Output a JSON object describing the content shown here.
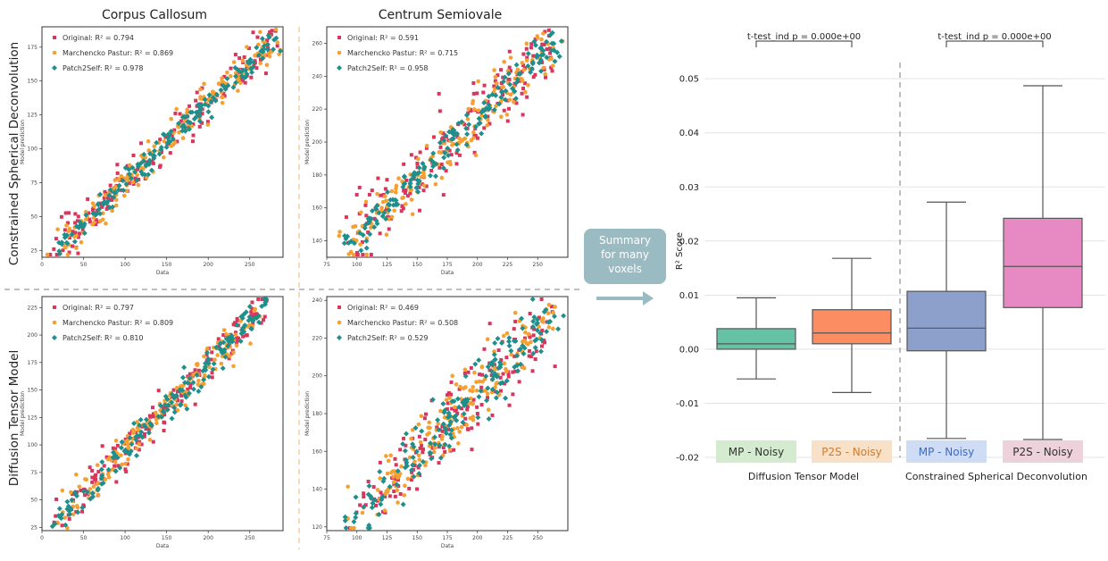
{
  "colors": {
    "original": "#d9365e",
    "mp": "#f5a033",
    "p2s": "#1f8f8c",
    "box_mp_dtm": "#66c2a5",
    "box_p2s_dtm": "#fc8d62",
    "box_mp_csd": "#8da0cb",
    "box_p2s_csd": "#e78ac3",
    "label_mp_dtm": "#d4ebd0",
    "label_p2s_dtm": "#f9e1c7",
    "label_mp_csd": "#cfdcf5",
    "label_p2s_csd": "#edd1db",
    "arrow": "#9bbbc2"
  },
  "column_titles": [
    "Corpus Callosum",
    "Centrum Semiovale"
  ],
  "row_titles": [
    "Constrained Spherical Deconvolution",
    "Diffusion Tensor Model"
  ],
  "arrow_label": [
    "Summary",
    "for many",
    "voxels"
  ],
  "chart_data": [
    {
      "id": "cc_csd",
      "type": "scatter",
      "column": "Corpus Callosum",
      "row": "Constrained Spherical Deconvolution",
      "xlabel": "Data",
      "ylabel": "Model prediction",
      "xlim": [
        0,
        290
      ],
      "ylim": [
        20,
        190
      ],
      "xticks": [
        0,
        50,
        100,
        150,
        200,
        250
      ],
      "yticks": [
        25,
        50,
        75,
        100,
        125,
        150,
        175
      ],
      "legend": [
        "Original: R² = 0.794",
        "Marchencko Pastur: R² = 0.869",
        "Patch2Self: R² = 0.978"
      ],
      "fit": {
        "x0": 15,
        "x1": 280,
        "y0": 24,
        "y1": 182
      },
      "spread": [
        22,
        16,
        9
      ],
      "seed": 11
    },
    {
      "id": "cs_csd",
      "type": "scatter",
      "column": "Centrum Semiovale",
      "row": "Constrained Spherical Deconvolution",
      "xlabel": "Data",
      "ylabel": "Model prediction",
      "xlim": [
        75,
        275
      ],
      "ylim": [
        130,
        270
      ],
      "xticks": [
        75,
        100,
        125,
        150,
        175,
        200,
        225,
        250
      ],
      "yticks": [
        140,
        160,
        180,
        200,
        220,
        240,
        260
      ],
      "legend": [
        "Original: R² = 0.591",
        "Marchencko Pastur: R² = 0.715",
        "Patch2Self: R² = 0.958"
      ],
      "fit": {
        "x0": 90,
        "x1": 265,
        "y0": 135,
        "y1": 262
      },
      "spread": [
        28,
        20,
        10
      ],
      "seed": 23
    },
    {
      "id": "cc_dtm",
      "type": "scatter",
      "column": "Corpus Callosum",
      "row": "Diffusion Tensor Model",
      "xlabel": "Data",
      "ylabel": "Model prediction",
      "xlim": [
        0,
        290
      ],
      "ylim": [
        22,
        235
      ],
      "xticks": [
        0,
        50,
        100,
        150,
        200,
        250
      ],
      "yticks": [
        25,
        50,
        75,
        100,
        125,
        150,
        175,
        200,
        225
      ],
      "legend": [
        "Original: R² = 0.797",
        "Marchencko Pastur: R² = 0.809",
        "Patch2Self: R² = 0.810"
      ],
      "fit": {
        "x0": 15,
        "x1": 270,
        "y0": 28,
        "y1": 228
      },
      "spread": [
        24,
        20,
        16
      ],
      "seed": 37
    },
    {
      "id": "cs_dtm",
      "type": "scatter",
      "column": "Centrum Semiovale",
      "row": "Diffusion Tensor Model",
      "xlabel": "Data",
      "ylabel": "Model prediction",
      "xlim": [
        75,
        275
      ],
      "ylim": [
        118,
        242
      ],
      "xticks": [
        75,
        100,
        125,
        150,
        175,
        200,
        225,
        250
      ],
      "yticks": [
        120,
        140,
        160,
        180,
        200,
        220,
        240
      ],
      "legend": [
        "Original: R² = 0.469",
        "Marchencko Pastur: R² = 0.508",
        "Patch2Self: R² = 0.529"
      ],
      "fit": {
        "x0": 95,
        "x1": 262,
        "y0": 122,
        "y1": 232
      },
      "spread": [
        26,
        22,
        18
      ],
      "seed": 51
    },
    {
      "id": "summary",
      "type": "box",
      "ylabel": "R² Score",
      "ylim": [
        -0.02,
        0.053
      ],
      "yticks": [
        -0.02,
        -0.01,
        0.0,
        0.01,
        0.02,
        0.03,
        0.04,
        0.05
      ],
      "ytick_labels": [
        "-0.02",
        "-0.01",
        "0.00",
        "0.01",
        "0.02",
        "0.03",
        "0.04",
        "0.05"
      ],
      "groups": [
        "Diffusion Tensor Model",
        "Constrained Spherical Deconvolution"
      ],
      "annotations": [
        "t-test_ind p = 0.000e+00",
        "t-test_ind p = 0.000e+00"
      ],
      "boxes": [
        {
          "label": "MP - Noisy",
          "group": "Diffusion Tensor Model",
          "whisker_low": -0.0055,
          "q1": 0.0,
          "median": 0.001,
          "q3": 0.0038,
          "whisker_high": 0.0095
        },
        {
          "label": "P2S - Noisy",
          "group": "Diffusion Tensor Model",
          "whisker_low": -0.008,
          "q1": 0.001,
          "median": 0.003,
          "q3": 0.0073,
          "whisker_high": 0.0168
        },
        {
          "label": "MP - Noisy",
          "group": "Constrained Spherical Deconvolution",
          "whisker_low": -0.0165,
          "q1": -0.0003,
          "median": 0.0039,
          "q3": 0.0107,
          "whisker_high": 0.0272
        },
        {
          "label": "P2S - Noisy",
          "group": "Constrained Spherical Deconvolution",
          "whisker_low": -0.0167,
          "q1": 0.0077,
          "median": 0.0153,
          "q3": 0.0242,
          "whisker_high": 0.0487
        }
      ]
    }
  ]
}
